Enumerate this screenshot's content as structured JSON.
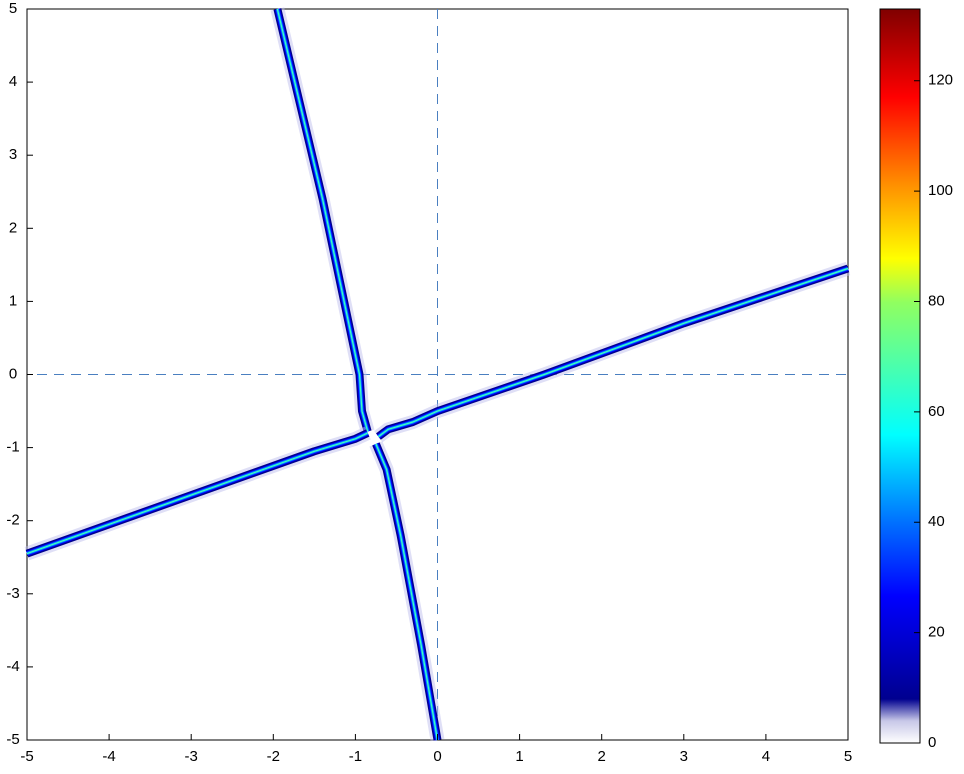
{
  "chart_data": {
    "type": "heatmap",
    "xlim": [
      -5,
      5
    ],
    "ylim": [
      -5,
      5
    ],
    "xticks": [
      -5,
      -4,
      -3,
      -2,
      -1,
      0,
      1,
      2,
      3,
      4,
      5
    ],
    "yticks": [
      -5,
      -4,
      -3,
      -2,
      -1,
      0,
      1,
      2,
      3,
      4,
      5
    ],
    "series": [
      {
        "x": [
          -1.95,
          -1.4,
          -0.95,
          -0.92,
          -0.85
        ],
        "y": [
          5,
          2.4,
          0.0,
          -0.5,
          -0.78
        ]
      },
      {
        "x": [
          -5,
          -3,
          -1.5,
          -1.0,
          -0.85
        ],
        "y": [
          -2.45,
          -1.65,
          -1.05,
          -0.88,
          -0.8
        ]
      },
      {
        "x": [
          -0.72,
          -0.6,
          -0.3,
          0,
          1.3,
          3,
          5
        ],
        "y": [
          -0.85,
          -0.75,
          -0.65,
          -0.5,
          0.0,
          0.7,
          1.45
        ]
      },
      {
        "x": [
          -0.75,
          -0.62,
          -0.45,
          -0.2,
          0
        ],
        "y": [
          -0.95,
          -1.3,
          -2.2,
          -3.7,
          -5
        ]
      }
    ],
    "colorbar": {
      "lim": [
        0,
        133
      ],
      "ticks": [
        0,
        20,
        40,
        60,
        80,
        100,
        120
      ]
    }
  }
}
